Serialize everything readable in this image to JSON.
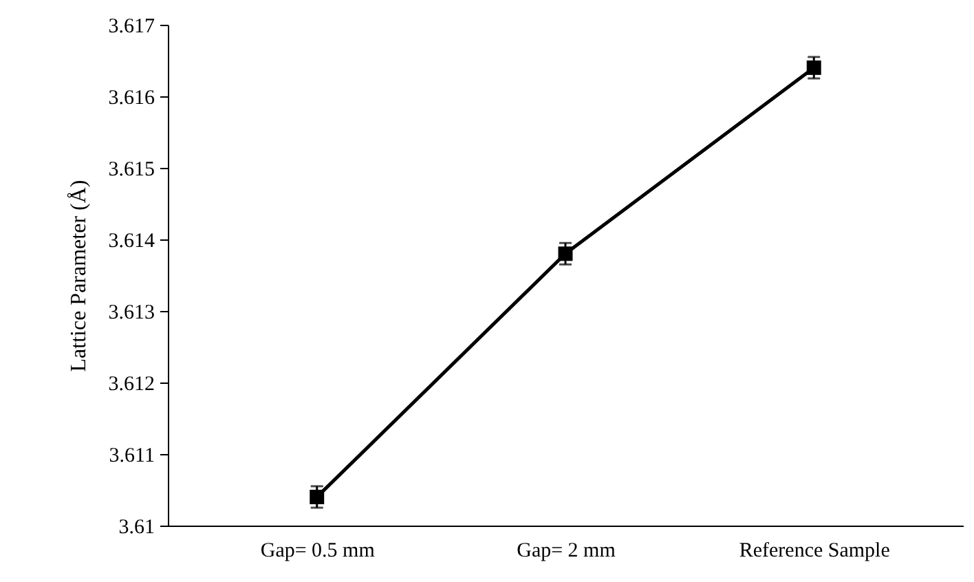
{
  "chart_data": {
    "type": "line",
    "ylabel": "Lattice Parameter (Å)",
    "categories": [
      "Gap= 0.5 mm",
      "Gap= 2 mm",
      "Reference Sample"
    ],
    "series": [
      {
        "color": "#000000",
        "values": [
          3.6104,
          3.6138,
          3.6164
        ],
        "errors": [
          0.00015,
          0.00015,
          0.00015
        ]
      }
    ],
    "ylim": [
      3.61,
      3.617
    ],
    "yticks": [
      3.61,
      3.611,
      3.612,
      3.613,
      3.614,
      3.615,
      3.616,
      3.617
    ],
    "marker": "square",
    "line_style": "solid"
  }
}
